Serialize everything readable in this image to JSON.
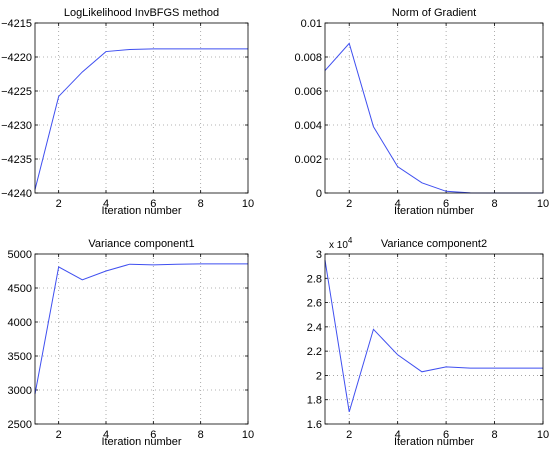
{
  "chart_data": [
    {
      "type": "line",
      "title": "LogLikelihood InvBFGS method",
      "xlabel": "Iteration number",
      "ylabel": "",
      "xlim": [
        1,
        10
      ],
      "ylim": [
        -4240,
        -4215
      ],
      "xticks": [
        2,
        4,
        6,
        8,
        10
      ],
      "yticks": [
        -4240,
        -4235,
        -4230,
        -4225,
        -4220,
        -4215
      ],
      "ytick_labels": [
        "−4240",
        "−4235",
        "−4230",
        "−4225",
        "−4220",
        "−4215"
      ],
      "exponent_label": "",
      "grid": true,
      "series": [
        {
          "color": "#3f4ff0",
          "x": [
            1,
            2,
            3,
            4,
            5,
            6,
            7,
            8,
            9,
            10
          ],
          "y": [
            -4239.5,
            -4225.8,
            -4222.2,
            -4219.2,
            -4218.9,
            -4218.8,
            -4218.8,
            -4218.8,
            -4218.8,
            -4218.8
          ]
        }
      ]
    },
    {
      "type": "line",
      "title": "Norm of Gradient",
      "xlabel": "Iteration number",
      "ylabel": "",
      "xlim": [
        1,
        10
      ],
      "ylim": [
        0,
        0.01
      ],
      "xticks": [
        2,
        4,
        6,
        8,
        10
      ],
      "yticks": [
        0,
        0.002,
        0.004,
        0.006,
        0.008,
        0.01
      ],
      "ytick_labels": [
        "0",
        "0.002",
        "0.004",
        "0.006",
        "0.008",
        "0.01"
      ],
      "exponent_label": "",
      "grid": true,
      "series": [
        {
          "color": "#3f4ff0",
          "x": [
            1,
            2,
            3,
            4,
            5,
            6,
            7,
            8,
            9,
            10
          ],
          "y": [
            0.0072,
            0.0088,
            0.0039,
            0.00155,
            0.0006,
            0.0001,
            1e-05,
            0,
            0,
            0
          ]
        }
      ]
    },
    {
      "type": "line",
      "title": "Variance component1",
      "xlabel": "Iteration number",
      "ylabel": "",
      "xlim": [
        1,
        10
      ],
      "ylim": [
        2500,
        5000
      ],
      "xticks": [
        2,
        4,
        6,
        8,
        10
      ],
      "yticks": [
        2500,
        3000,
        3500,
        4000,
        4500,
        5000
      ],
      "ytick_labels": [
        "2500",
        "3000",
        "3500",
        "4000",
        "4500",
        "5000"
      ],
      "exponent_label": "",
      "grid": true,
      "series": [
        {
          "color": "#3f4ff0",
          "x": [
            1,
            2,
            3,
            4,
            5,
            6,
            7,
            8,
            9,
            10
          ],
          "y": [
            2940,
            4810,
            4620,
            4750,
            4850,
            4840,
            4850,
            4855,
            4855,
            4855
          ]
        }
      ]
    },
    {
      "type": "line",
      "title": "Variance component2",
      "xlabel": "Iteration number",
      "ylabel": "",
      "xlim": [
        1,
        10
      ],
      "ylim": [
        16000,
        30000
      ],
      "xticks": [
        2,
        4,
        6,
        8,
        10
      ],
      "yticks": [
        16000,
        18000,
        20000,
        22000,
        24000,
        26000,
        28000,
        30000
      ],
      "ytick_labels": [
        "1.6",
        "1.8",
        "2",
        "2.2",
        "2.4",
        "2.6",
        "2.8",
        "3"
      ],
      "exponent_label": "x 10",
      "exponent_power": "4",
      "grid": true,
      "series": [
        {
          "color": "#3f4ff0",
          "x": [
            1,
            2,
            3,
            4,
            5,
            6,
            7,
            8,
            9,
            10
          ],
          "y": [
            29500,
            17000,
            23800,
            21700,
            20300,
            20700,
            20600,
            20600,
            20600,
            20600
          ]
        }
      ]
    }
  ]
}
